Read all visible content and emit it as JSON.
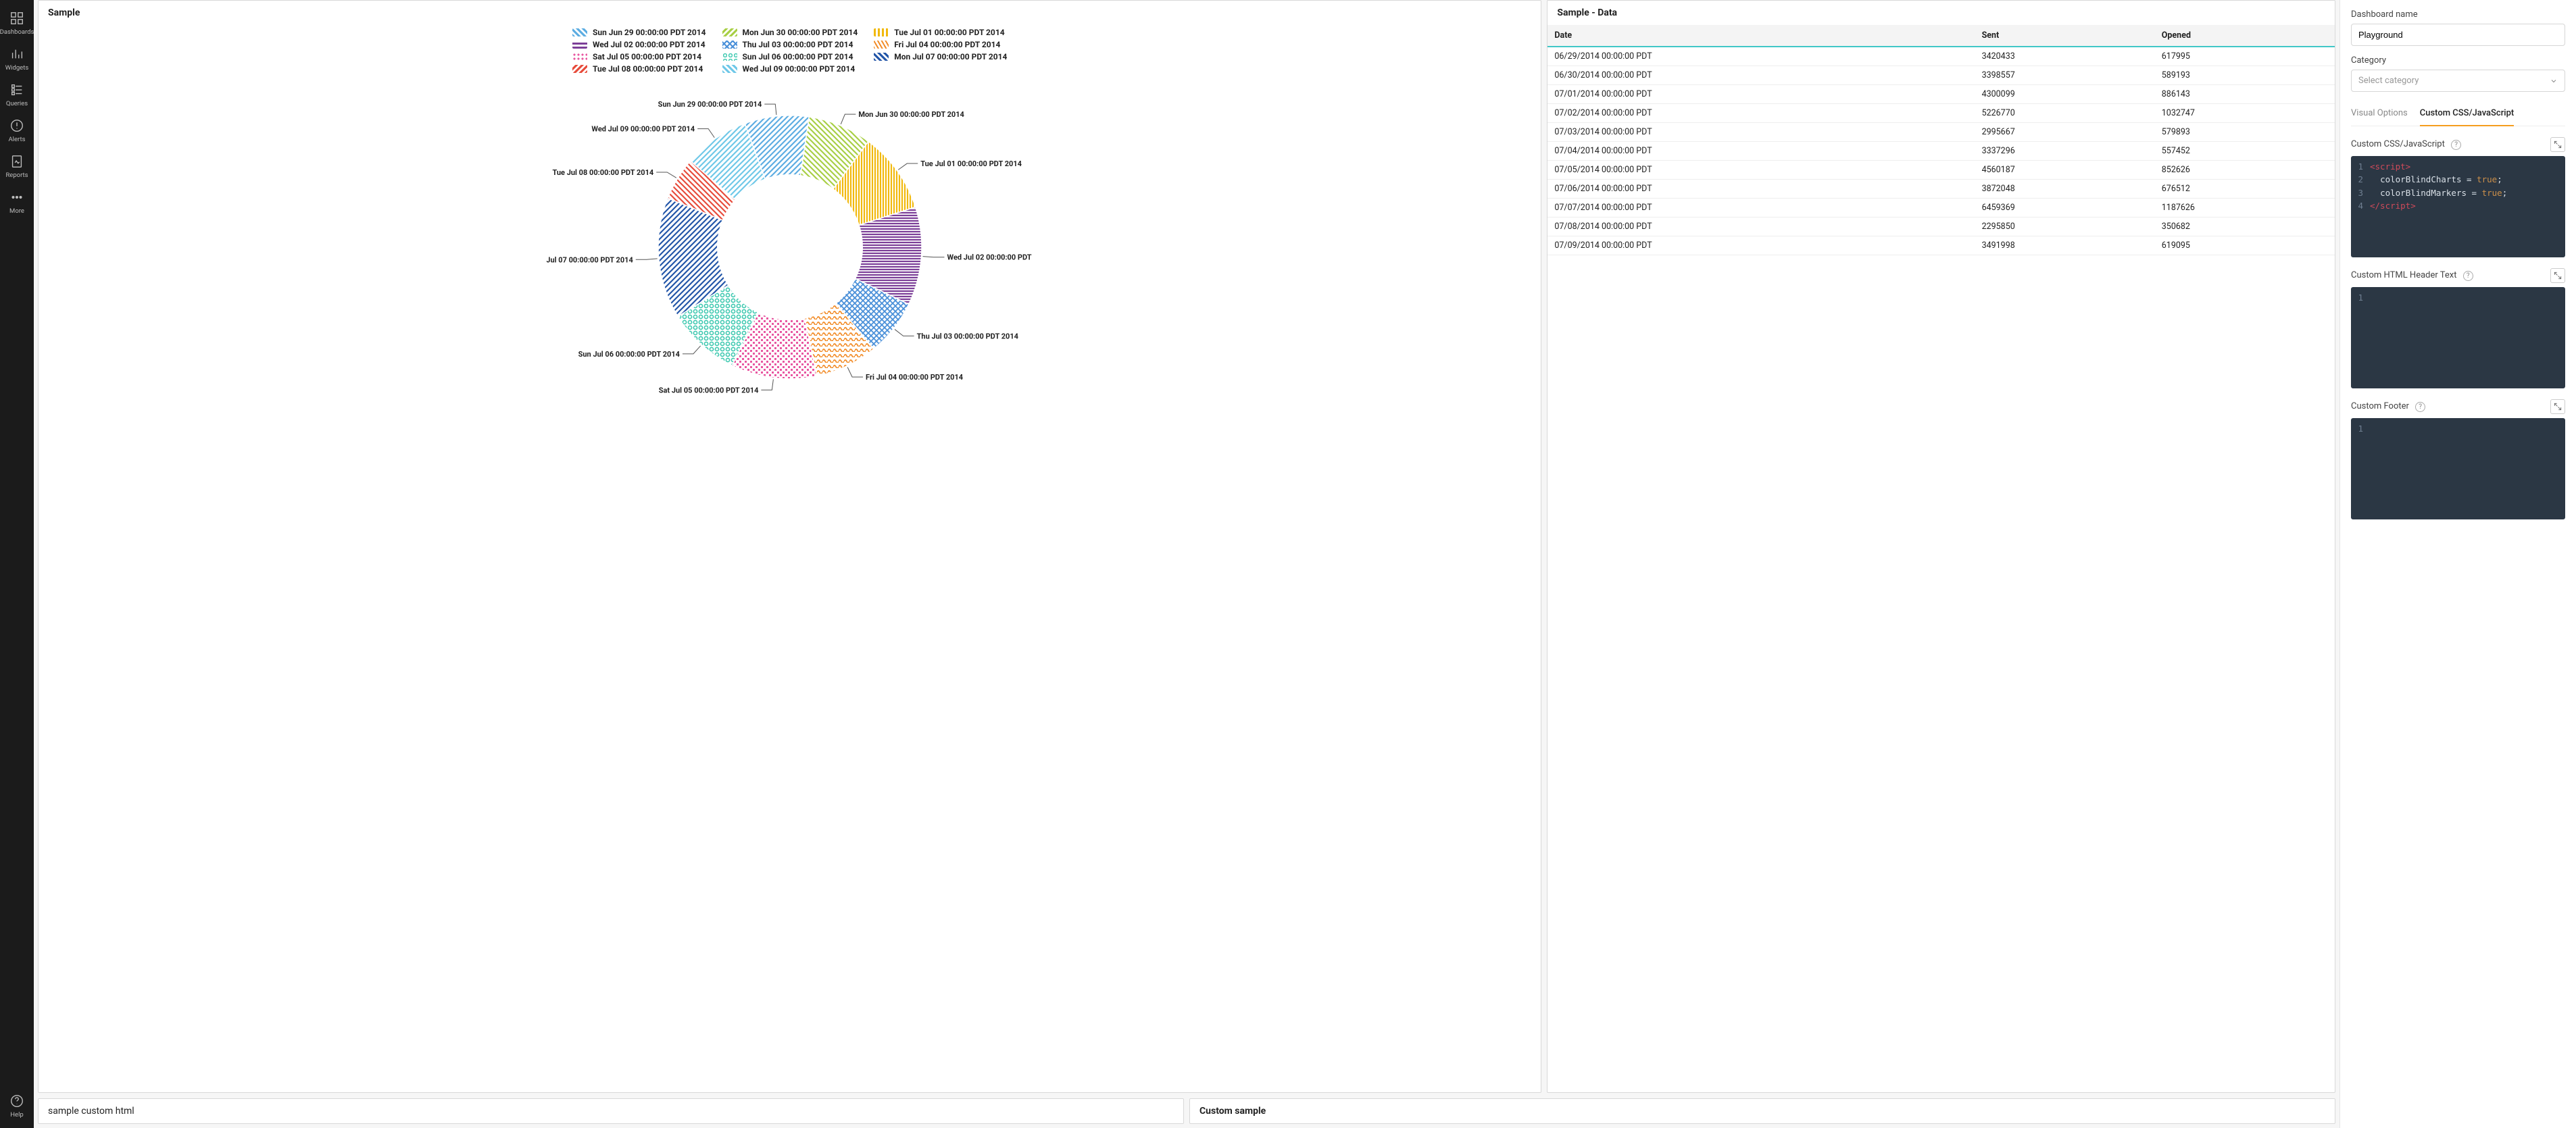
{
  "sidebar": {
    "items": [
      {
        "label": "Dashboards",
        "icon": "dashboards-icon"
      },
      {
        "label": "Widgets",
        "icon": "widgets-icon"
      },
      {
        "label": "Queries",
        "icon": "queries-icon"
      },
      {
        "label": "Alerts",
        "icon": "alerts-icon"
      },
      {
        "label": "Reports",
        "icon": "reports-icon"
      },
      {
        "label": "More",
        "icon": "more-icon"
      }
    ],
    "help_label": "Help"
  },
  "panels": {
    "chart_title": "Sample",
    "data_title": "Sample - Data",
    "bottom_left_title": "sample custom html",
    "bottom_right_title": "Custom sample"
  },
  "chart": {
    "type": "donut",
    "inner_radius_ratio": 0.55,
    "background": "#ffffff",
    "label_fontsize": 11,
    "label_fontweight": "700",
    "label_color": "#222222",
    "legend_cols": 3,
    "series": [
      {
        "label": "Sun Jun 29 00:00:00 PDT 2014",
        "value": 3420433,
        "color": "#5dade2",
        "pattern": "diag"
      },
      {
        "label": "Mon Jun 30 00:00:00 PDT 2014",
        "value": 3398557,
        "color": "#a8cf45",
        "pattern": "diag2"
      },
      {
        "label": "Tue Jul 01 00:00:00 PDT 2014",
        "value": 4300099,
        "color": "#f1b90d",
        "pattern": "vert"
      },
      {
        "label": "Wed Jul 02 00:00:00 PDT 2014",
        "value": 5226770,
        "color": "#7c3f98",
        "pattern": "horiz"
      },
      {
        "label": "Thu Jul 03 00:00:00 PDT 2014",
        "value": 2995667,
        "color": "#4a90d9",
        "pattern": "cross"
      },
      {
        "label": "Fri Jul 04 00:00:00 PDT 2014",
        "value": 3337296,
        "color": "#f28c28",
        "pattern": "wave"
      },
      {
        "label": "Sat Jul 05 00:00:00 PDT 2014",
        "value": 4560187,
        "color": "#e857a1",
        "pattern": "dots"
      },
      {
        "label": "Sun Jul 06 00:00:00 PDT 2014",
        "value": 3872048,
        "color": "#3ec9b0",
        "pattern": "ring"
      },
      {
        "label": "Mon Jul 07 00:00:00 PDT 2014",
        "value": 6459369,
        "color": "#2356a8",
        "pattern": "diag"
      },
      {
        "label": "Tue Jul 08 00:00:00 PDT 2014",
        "value": 2295850,
        "color": "#e74c3c",
        "pattern": "diag2"
      },
      {
        "label": "Wed Jul 09 00:00:00 PDT 2014",
        "value": 3491998,
        "color": "#6fc8e8",
        "pattern": "diag"
      }
    ]
  },
  "table": {
    "columns": [
      "Date",
      "Sent",
      "Opened"
    ],
    "rows": [
      [
        "06/29/2014 00:00:00 PDT",
        "3420433",
        "617995"
      ],
      [
        "06/30/2014 00:00:00 PDT",
        "3398557",
        "589193"
      ],
      [
        "07/01/2014 00:00:00 PDT",
        "4300099",
        "886143"
      ],
      [
        "07/02/2014 00:00:00 PDT",
        "5226770",
        "1032747"
      ],
      [
        "07/03/2014 00:00:00 PDT",
        "2995667",
        "579893"
      ],
      [
        "07/04/2014 00:00:00 PDT",
        "3337296",
        "557452"
      ],
      [
        "07/05/2014 00:00:00 PDT",
        "4560187",
        "852626"
      ],
      [
        "07/06/2014 00:00:00 PDT",
        "3872048",
        "676512"
      ],
      [
        "07/07/2014 00:00:00 PDT",
        "6459369",
        "1187626"
      ],
      [
        "07/08/2014 00:00:00 PDT",
        "2295850",
        "350682"
      ],
      [
        "07/09/2014 00:00:00 PDT",
        "3491998",
        "619095"
      ]
    ]
  },
  "settings": {
    "dashboard_name_label": "Dashboard name",
    "dashboard_name_value": "Playground",
    "category_label": "Category",
    "category_placeholder": "Select category",
    "tabs": {
      "visual": "Visual Options",
      "custom": "Custom CSS/JavaScript",
      "active": "custom"
    },
    "editors": {
      "css_js": {
        "label": "Custom CSS/JavaScript",
        "lines": [
          {
            "n": 1,
            "html": "<span class='tok-tag'>&lt;script&gt;</span>"
          },
          {
            "n": 2,
            "html": "  <span class='tok-attr'>colorBlindCharts</span> <span class='tok-eq'>=</span> <span class='tok-bool'>true</span><span class='tok-punc'>;</span>"
          },
          {
            "n": 3,
            "html": "  <span class='tok-attr'>colorBlindMarkers</span> <span class='tok-eq'>=</span> <span class='tok-bool'>true</span><span class='tok-punc'>;</span>"
          },
          {
            "n": 4,
            "html": "<span class='tok-tag'>&lt;/script&gt;</span>"
          }
        ]
      },
      "header_html": {
        "label": "Custom HTML Header Text",
        "lines": [
          {
            "n": 1,
            "html": ""
          }
        ]
      },
      "footer": {
        "label": "Custom Footer",
        "lines": [
          {
            "n": 1,
            "html": ""
          }
        ]
      }
    }
  }
}
